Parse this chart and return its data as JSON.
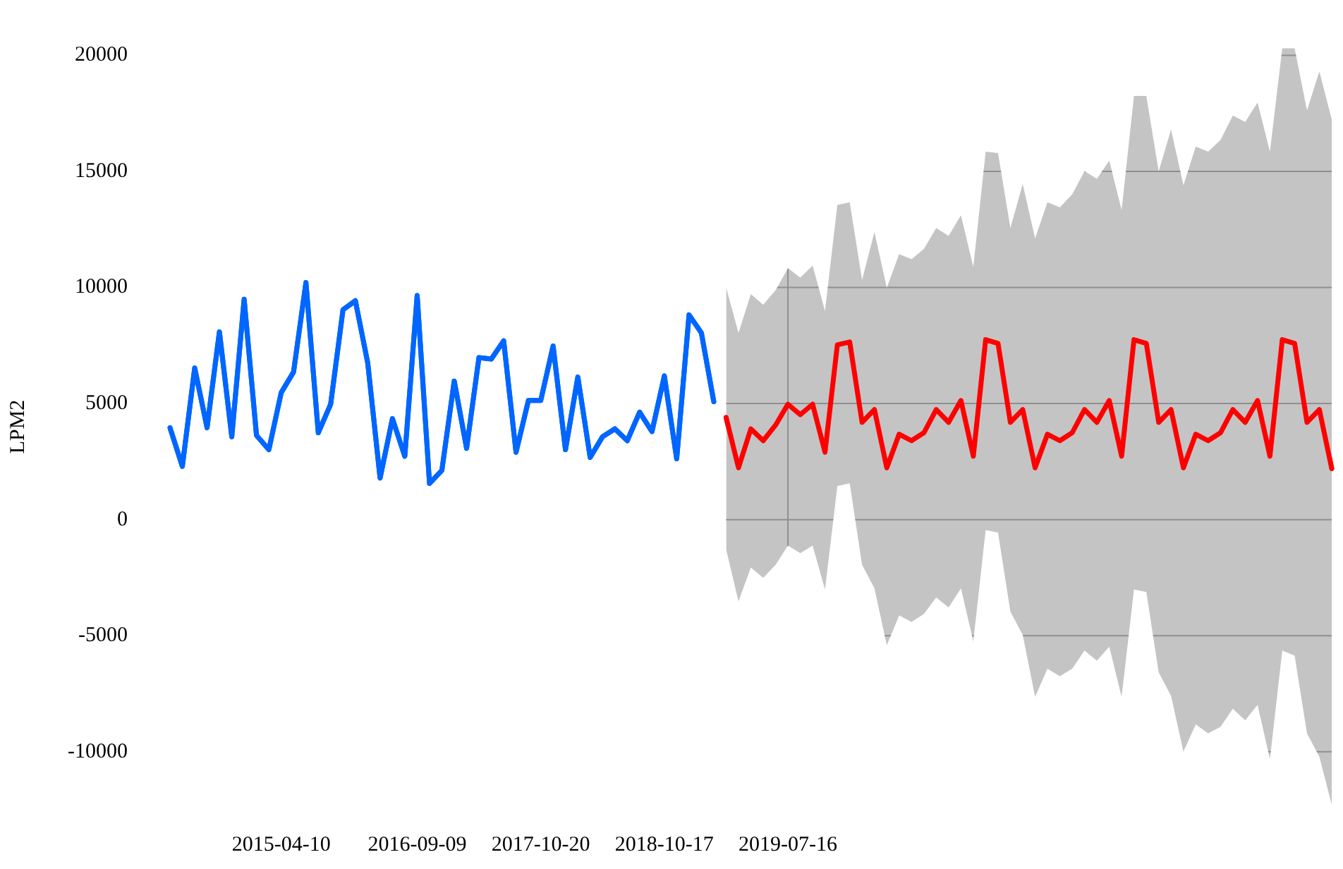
{
  "chart_data": {
    "type": "line",
    "ylabel": "LPM2",
    "categories": [
      null,
      null,
      null,
      null,
      null,
      null,
      null,
      null,
      null,
      "2015-04-10",
      null,
      null,
      null,
      null,
      null,
      null,
      null,
      null,
      null,
      null,
      "2016-09-09",
      null,
      null,
      null,
      null,
      null,
      null,
      null,
      null,
      null,
      "2017-10-20",
      null,
      null,
      null,
      null,
      null,
      null,
      null,
      null,
      null,
      "2018-10-17",
      null,
      null,
      null,
      null,
      null,
      null,
      null,
      null,
      null,
      "2019-07-16",
      null,
      null,
      null,
      null,
      null,
      null,
      null,
      null,
      null,
      null,
      null,
      null,
      null,
      null,
      null,
      null,
      null,
      null,
      null,
      null,
      null,
      null,
      null,
      null,
      null,
      null,
      null,
      null,
      null,
      null,
      null,
      null,
      null,
      null,
      null,
      null,
      null,
      null,
      null,
      null,
      null,
      null,
      null,
      null
    ],
    "series": [
      {
        "color": "#0066ff",
        "values": [
          3960,
          2290,
          6530,
          3960,
          8090,
          3570,
          9490,
          3630,
          3010,
          5470,
          6360,
          10210,
          3740,
          4970,
          9040,
          9430,
          6750,
          1790,
          4350,
          2730,
          9650,
          1560,
          2120,
          5970,
          3070,
          6980,
          6920,
          7700,
          2900,
          5130,
          5130,
          7480,
          3010,
          6140,
          2680,
          3570,
          3910,
          3400,
          4630,
          3790,
          6190,
          2620,
          8820,
          8040,
          5080,
          null,
          null,
          null,
          null,
          null,
          null,
          null,
          null,
          null,
          null,
          null,
          null,
          null,
          null,
          null,
          null,
          null,
          null,
          null,
          null,
          null,
          null,
          null,
          null,
          null,
          null,
          null,
          null,
          null,
          null,
          null,
          null,
          null,
          null,
          null,
          null,
          null,
          null,
          null,
          null,
          null,
          null,
          null,
          null,
          null,
          null,
          null,
          null,
          null,
          null
        ]
      },
      {
        "color": "#ff0000",
        "values": [
          null,
          null,
          null,
          null,
          null,
          null,
          null,
          null,
          null,
          null,
          null,
          null,
          null,
          null,
          null,
          null,
          null,
          null,
          null,
          null,
          null,
          null,
          null,
          null,
          null,
          null,
          null,
          null,
          null,
          null,
          null,
          null,
          null,
          null,
          null,
          null,
          null,
          null,
          null,
          null,
          null,
          null,
          null,
          null,
          null,
          4400,
          2230,
          3910,
          3400,
          4070,
          4970,
          4520,
          4970,
          2900,
          7530,
          7650,
          4190,
          4740,
          2230,
          3680,
          3400,
          3740,
          4740,
          4190,
          5130,
          2730,
          7750,
          7590,
          4190,
          4740,
          2230,
          3680,
          3400,
          3740,
          4740,
          4190,
          5130,
          2730,
          7750,
          7590,
          4190,
          4740,
          2230,
          3680,
          3400,
          3740,
          4740,
          4190,
          5130,
          2730,
          7750,
          7590,
          4190,
          4740,
          2200
        ],
        "upper": [
          null,
          null,
          null,
          null,
          null,
          null,
          null,
          null,
          null,
          null,
          null,
          null,
          null,
          null,
          null,
          null,
          null,
          null,
          null,
          null,
          null,
          null,
          null,
          null,
          null,
          null,
          null,
          null,
          null,
          null,
          null,
          null,
          null,
          null,
          null,
          null,
          null,
          null,
          null,
          null,
          null,
          null,
          null,
          null,
          null,
          10000,
          8040,
          9710,
          9260,
          9880,
          10830,
          10430,
          10940,
          8980,
          13560,
          13670,
          10320,
          12390,
          9990,
          11440,
          11220,
          11660,
          12560,
          12220,
          13110,
          10880,
          15850,
          15790,
          12560,
          14450,
          12110,
          13670,
          13450,
          14010,
          15010,
          14680,
          15460,
          13340,
          18250,
          18250,
          15010,
          16800,
          14400,
          16070,
          15850,
          16350,
          17410,
          17130,
          17970,
          15850,
          20300,
          20300,
          17630,
          19310,
          17240
        ],
        "lower": [
          null,
          null,
          null,
          null,
          null,
          null,
          null,
          null,
          null,
          null,
          null,
          null,
          null,
          null,
          null,
          null,
          null,
          null,
          null,
          null,
          null,
          null,
          null,
          null,
          null,
          null,
          null,
          null,
          null,
          null,
          null,
          null,
          null,
          null,
          null,
          null,
          null,
          null,
          null,
          null,
          null,
          null,
          null,
          null,
          null,
          -1280,
          -3520,
          -2060,
          -2510,
          -1950,
          -1120,
          -1450,
          -1120,
          -3010,
          1450,
          1560,
          -1950,
          -2960,
          -5410,
          -4130,
          -4410,
          -4070,
          -3350,
          -3790,
          -2960,
          -5250,
          -450,
          -560,
          -3960,
          -4970,
          -7640,
          -6420,
          -6750,
          -6420,
          -5640,
          -6080,
          -5470,
          -7640,
          -3010,
          -3120,
          -6580,
          -7590,
          -9990,
          -8820,
          -9210,
          -8930,
          -8150,
          -8650,
          -7980,
          -10320,
          -5640,
          -5860,
          -9210,
          -10210,
          -12280
        ]
      }
    ],
    "ylim": [
      -12500,
      20500
    ],
    "yticks": [
      -10000,
      -5000,
      0,
      5000,
      10000,
      15000,
      20000
    ],
    "grid": true,
    "legend": false,
    "marker": "none",
    "line_style": "solid"
  }
}
